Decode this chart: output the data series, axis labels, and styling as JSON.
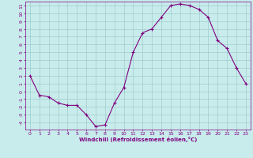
{
  "x": [
    0,
    1,
    2,
    3,
    4,
    5,
    6,
    7,
    8,
    9,
    10,
    11,
    12,
    13,
    14,
    15,
    16,
    17,
    18,
    19,
    20,
    21,
    22,
    23
  ],
  "y": [
    2.0,
    -0.5,
    -0.7,
    -1.5,
    -1.8,
    -1.8,
    -3.0,
    -4.5,
    -4.3,
    -1.5,
    0.5,
    5.0,
    7.5,
    8.0,
    9.5,
    11.0,
    11.2,
    11.0,
    10.5,
    9.5,
    6.5,
    5.5,
    3.0,
    1.0
  ],
  "line_color": "#800080",
  "marker": "+",
  "marker_color": "#800080",
  "bg_color": "#c8ecec",
  "grid_color": "#a0cccc",
  "xlabel": "Windchill (Refroidissement éolien,°C)",
  "xlim": [
    -0.5,
    23.5
  ],
  "ylim": [
    -4.9,
    11.5
  ],
  "yticks": [
    -4,
    -3,
    -2,
    -1,
    0,
    1,
    2,
    3,
    4,
    5,
    6,
    7,
    8,
    9,
    10,
    11
  ],
  "xticks": [
    0,
    1,
    2,
    3,
    4,
    5,
    6,
    7,
    8,
    9,
    10,
    11,
    12,
    13,
    14,
    15,
    16,
    17,
    18,
    19,
    20,
    21,
    22,
    23
  ],
  "tick_color": "#800080",
  "label_color": "#800080",
  "axis_label_fontsize": 5.0,
  "tick_fontsize": 4.5,
  "linewidth": 0.8,
  "markersize": 2.5
}
